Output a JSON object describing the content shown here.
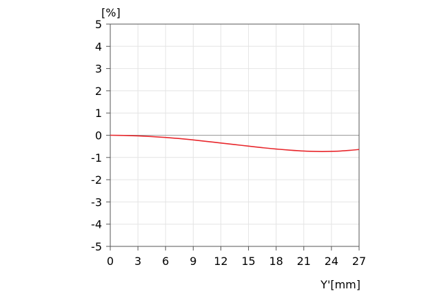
{
  "chart_data": {
    "type": "line",
    "title": "",
    "xlabel": "Y'[mm]",
    "ylabel": "[%]",
    "xlim": [
      0,
      27
    ],
    "ylim": [
      -5,
      5
    ],
    "x_ticks": [
      0,
      3,
      6,
      9,
      12,
      15,
      18,
      21,
      24,
      27
    ],
    "y_ticks": [
      5,
      4,
      3,
      2,
      1,
      0,
      -1,
      -2,
      -3,
      -4,
      -5
    ],
    "x_tick_labels": [
      "0",
      "3",
      "6",
      "9",
      "12",
      "15",
      "18",
      "21",
      "24",
      "27"
    ],
    "y_tick_labels": [
      "5",
      "4",
      "3",
      "2",
      "1",
      "0",
      "-1",
      "-2",
      "-3",
      "-4",
      "-5"
    ],
    "grid": true,
    "series": [
      {
        "color": "#e8262b",
        "x": [
          0,
          1.5,
          3,
          4.5,
          6,
          7.5,
          9,
          10.5,
          12,
          13.5,
          15,
          16.5,
          18,
          19.5,
          21,
          22.5,
          23.5,
          25,
          26,
          27
        ],
        "y": [
          0.0,
          -0.01,
          -0.03,
          -0.06,
          -0.1,
          -0.15,
          -0.21,
          -0.28,
          -0.35,
          -0.42,
          -0.49,
          -0.56,
          -0.62,
          -0.67,
          -0.71,
          -0.73,
          -0.73,
          -0.71,
          -0.68,
          -0.64
        ]
      }
    ],
    "reference_line_y": 0
  }
}
